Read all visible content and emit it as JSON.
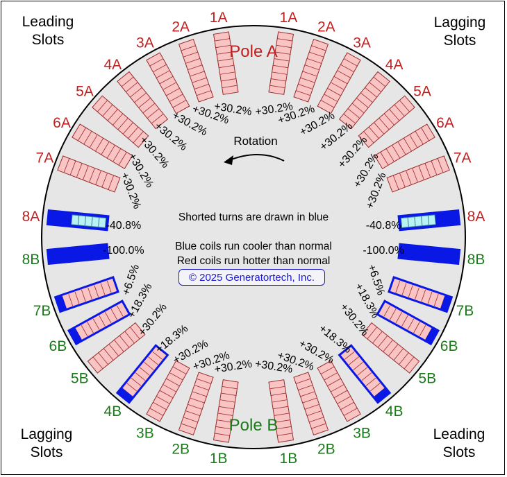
{
  "corners": {
    "top_left": [
      "Leading",
      "Slots"
    ],
    "top_right": [
      "Lagging",
      "Slots"
    ],
    "bottom_left": [
      "Lagging",
      "Slots"
    ],
    "bottom_right": [
      "Leading",
      "Slots"
    ]
  },
  "poles": {
    "a": "Pole A",
    "b": "Pole B"
  },
  "rotation_label": "Rotation",
  "notes": [
    "Shorted turns are drawn in blue",
    "Blue coils run cooler than normal",
    "Red coils run hotter than normal"
  ],
  "credit": "© 2025 Generatortech, Inc.",
  "colors": {
    "pole_a": "#c02020",
    "pole_b": "#1a7a1a",
    "hot_coil_fill": "#f9c4c4",
    "shorted_blue": "#0a18e6",
    "cool_light_fill": "#b8f2f2",
    "disc": "#e6e6e6"
  },
  "slots_left": [
    {
      "label": "1A",
      "pole": "a",
      "value": "+30.2%",
      "type": "normal"
    },
    {
      "label": "2A",
      "pole": "a",
      "value": "+30.2%",
      "type": "normal"
    },
    {
      "label": "3A",
      "pole": "a",
      "value": "+30.2%",
      "type": "normal"
    },
    {
      "label": "4A",
      "pole": "a",
      "value": "+30.2%",
      "type": "normal"
    },
    {
      "label": "5A",
      "pole": "a",
      "value": "+30.2%",
      "type": "normal"
    },
    {
      "label": "6A",
      "pole": "a",
      "value": "+30.2%",
      "type": "normal"
    },
    {
      "label": "7A",
      "pole": "a",
      "value": "+30.2%",
      "type": "normal"
    },
    {
      "label": "8A",
      "pole": "a",
      "value": "-40.8%",
      "type": "partial"
    },
    {
      "label": "8B",
      "pole": "b",
      "value": "-100.0%",
      "type": "full"
    },
    {
      "label": "7B",
      "pole": "b",
      "value": "+6.5%",
      "type": "outlined"
    },
    {
      "label": "6B",
      "pole": "b",
      "value": "+18.3%",
      "type": "outlined"
    },
    {
      "label": "5B",
      "pole": "b",
      "value": "+30.2%",
      "type": "normal"
    },
    {
      "label": "4B",
      "pole": "b",
      "value": "+18.3%",
      "type": "outlined"
    },
    {
      "label": "3B",
      "pole": "b",
      "value": "+30.2%",
      "type": "normal"
    },
    {
      "label": "2B",
      "pole": "b",
      "value": "+30.2%",
      "type": "normal"
    },
    {
      "label": "1B",
      "pole": "b",
      "value": "+30.2%",
      "type": "normal"
    }
  ],
  "slots_right": [
    {
      "label": "1A",
      "pole": "a",
      "value": "+30.2%",
      "type": "normal"
    },
    {
      "label": "2A",
      "pole": "a",
      "value": "+30.2%",
      "type": "normal"
    },
    {
      "label": "3A",
      "pole": "a",
      "value": "+30.2%",
      "type": "normal"
    },
    {
      "label": "4A",
      "pole": "a",
      "value": "+30.2%",
      "type": "normal"
    },
    {
      "label": "5A",
      "pole": "a",
      "value": "+30.2%",
      "type": "normal"
    },
    {
      "label": "6A",
      "pole": "a",
      "value": "+30.2%",
      "type": "normal"
    },
    {
      "label": "7A",
      "pole": "a",
      "value": "+30.2%",
      "type": "normal"
    },
    {
      "label": "8A",
      "pole": "a",
      "value": "-40.8%",
      "type": "partial"
    },
    {
      "label": "8B",
      "pole": "b",
      "value": "-100.0%",
      "type": "full"
    },
    {
      "label": "7B",
      "pole": "b",
      "value": "+6.5%",
      "type": "outlined"
    },
    {
      "label": "6B",
      "pole": "b",
      "value": "+18.3%",
      "type": "outlined"
    },
    {
      "label": "5B",
      "pole": "b",
      "value": "+30.2%",
      "type": "normal"
    },
    {
      "label": "4B",
      "pole": "b",
      "value": "+18.3%",
      "type": "outlined"
    },
    {
      "label": "3B",
      "pole": "b",
      "value": "+30.2%",
      "type": "normal"
    },
    {
      "label": "2B",
      "pole": "b",
      "value": "+30.2%",
      "type": "normal"
    },
    {
      "label": "1B",
      "pole": "b",
      "value": "+30.2%",
      "type": "normal"
    }
  ]
}
